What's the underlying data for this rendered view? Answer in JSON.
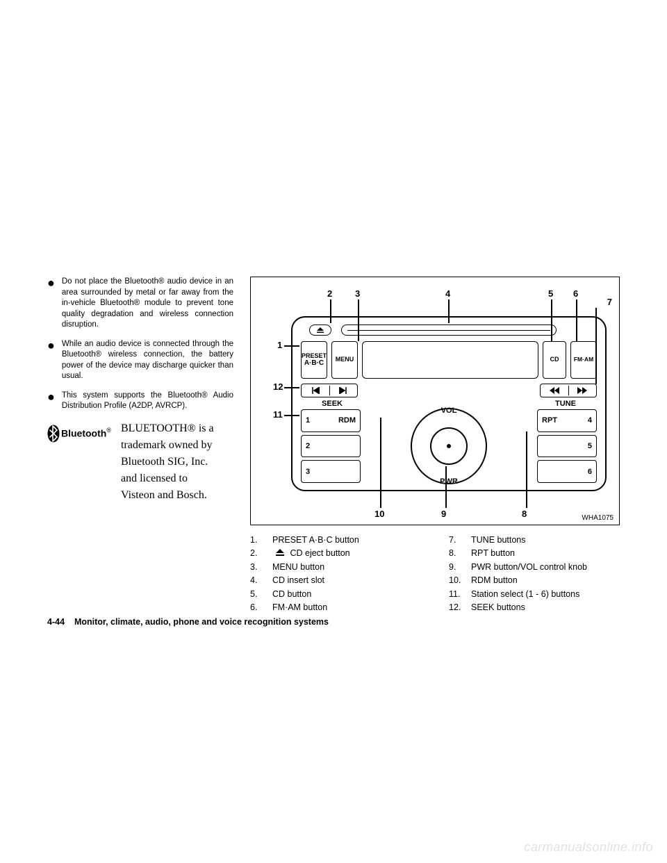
{
  "bullets": [
    "Do not place the Bluetooth® audio device in an area surrounded by metal or far away from the in-vehicle Bluetooth® module to prevent tone quality degradation and wireless connection disruption.",
    "While an audio device is connected through the Bluetooth® wireless connection, the battery power of the device may discharge quicker than usual.",
    "This system supports the Bluetooth® Audio Distribution Profile (A2DP, AVRCP)."
  ],
  "bluetooth_word": "Bluetooth",
  "bluetooth_reg": "®",
  "trademark_lines": [
    "BLUETOOTH® is a",
    "trademark owned by",
    "Bluetooth SIG, Inc.",
    "and licensed to",
    "Visteon and Bosch."
  ],
  "diagram": {
    "code": "WHA1075",
    "callouts": {
      "c1": "1",
      "c2": "2",
      "c3": "3",
      "c4": "4",
      "c5": "5",
      "c6": "6",
      "c7": "7",
      "c8": "8",
      "c9": "9",
      "c10": "10",
      "c11": "11",
      "c12": "12"
    },
    "labels": {
      "preset_top": "PRESET",
      "preset_bottom": "A·B·C",
      "menu": "MENU",
      "cd": "CD",
      "fmam": "FM·AM",
      "seek": "SEEK",
      "tune": "TUNE",
      "vol": "VOL",
      "pwr": "PWR",
      "rdm": "RDM",
      "rpt": "RPT",
      "n1": "1",
      "n2": "2",
      "n3": "3",
      "n4": "4",
      "n5": "5",
      "n6": "6"
    }
  },
  "legend_left": [
    {
      "n": "1.",
      "t": "PRESET A·B·C button"
    },
    {
      "n": "2.",
      "t": "CD eject button",
      "eject": true
    },
    {
      "n": "3.",
      "t": "MENU button"
    },
    {
      "n": "4.",
      "t": "CD insert slot"
    },
    {
      "n": "5.",
      "t": "CD button"
    },
    {
      "n": "6.",
      "t": "FM·AM button"
    }
  ],
  "legend_right": [
    {
      "n": "7.",
      "t": "TUNE buttons"
    },
    {
      "n": "8.",
      "t": "RPT button"
    },
    {
      "n": "9.",
      "t": "PWR button/VOL control knob"
    },
    {
      "n": "10.",
      "t": "RDM button"
    },
    {
      "n": "11.",
      "t": "Station select (1 - 6) buttons"
    },
    {
      "n": "12.",
      "t": "SEEK buttons"
    }
  ],
  "footer_page": "4-44",
  "footer_section": "Monitor, climate, audio, phone and voice recognition systems",
  "watermark": "carmanualsonline.info",
  "colors": {
    "text": "#000000",
    "background": "#ffffff",
    "watermark": "rgba(0,0,0,0.12)"
  }
}
